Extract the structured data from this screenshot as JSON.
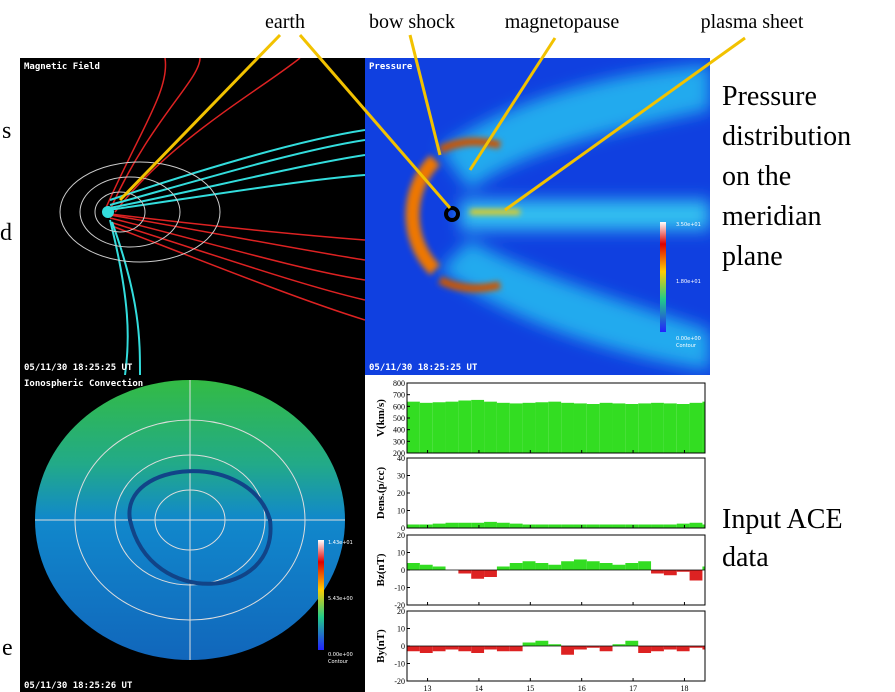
{
  "annotations": {
    "earth": "earth",
    "bow_shock": "bow shock",
    "magnetopause": "magnetopause",
    "plasma_sheet": "plasma sheet"
  },
  "left_fragments": [
    "s",
    "d",
    "e"
  ],
  "panels": {
    "magnetic": {
      "title": "Magnetic Field",
      "time": "05/11/30 18:25:25 UT"
    },
    "pressure": {
      "title": "Pressure",
      "time": "05/11/30 18:25:25 UT",
      "colorbar": [
        "3.50e+01",
        "1.80e+01",
        "0.00e+00"
      ],
      "contour": "Contour"
    },
    "ionosphere": {
      "title": "Ionospheric Convection",
      "time": "05/11/30 18:25:26 UT",
      "colorbar": [
        "1.43e+01",
        "5.43e+00",
        "0.00e+00"
      ],
      "contour": "Contour"
    }
  },
  "side_text": {
    "pressure": [
      "Pressure",
      "distribution",
      "on the",
      "meridian",
      "plane"
    ],
    "ace": [
      "Input ACE",
      "data"
    ]
  },
  "ace": {
    "x": [
      12.6,
      12.85,
      13.1,
      13.35,
      13.6,
      13.85,
      14.1,
      14.35,
      14.6,
      14.85,
      15.1,
      15.35,
      15.6,
      15.85,
      16.1,
      16.35,
      16.6,
      16.85,
      17.1,
      17.35,
      17.6,
      17.85,
      18.1,
      18.35
    ],
    "xlim": [
      12.6,
      18.4
    ],
    "xticks": [
      13,
      14,
      15,
      16,
      17,
      18
    ],
    "pos_color": "#33dd22",
    "neg_color": "#dd2222",
    "plots": [
      {
        "label": "V(km/s)",
        "ylim": [
          200,
          800
        ],
        "yticks": [
          200,
          300,
          400,
          500,
          600,
          700,
          800
        ],
        "values": [
          640,
          630,
          635,
          640,
          650,
          655,
          640,
          630,
          625,
          630,
          635,
          640,
          630,
          625,
          620,
          630,
          625,
          620,
          625,
          630,
          625,
          620,
          630,
          640
        ]
      },
      {
        "label": "Dens.(p/cc)",
        "ylim": [
          0,
          40
        ],
        "yticks": [
          0,
          10,
          20,
          30,
          40
        ],
        "values": [
          2,
          2,
          2.5,
          3,
          3,
          3,
          3.5,
          3,
          2.5,
          2,
          2,
          2,
          2,
          2,
          2,
          2,
          2,
          2,
          2,
          2,
          2,
          2.5,
          3,
          2
        ]
      },
      {
        "label": "Bz(nT)",
        "ylim": [
          -20,
          20
        ],
        "yticks": [
          -20,
          -10,
          0,
          10,
          20
        ],
        "values": [
          4,
          3,
          2,
          0,
          -2,
          -5,
          -4,
          2,
          4,
          5,
          4,
          3,
          5,
          6,
          5,
          4,
          3,
          4,
          5,
          -2,
          -3,
          -1,
          -6,
          2
        ]
      },
      {
        "label": "By(nT)",
        "ylim": [
          -20,
          20
        ],
        "yticks": [
          -20,
          -10,
          0,
          10,
          20
        ],
        "values": [
          -3,
          -4,
          -3,
          -2,
          -3,
          -4,
          -2,
          -3,
          -3,
          2,
          3,
          1,
          -5,
          -2,
          -1,
          -3,
          1,
          3,
          -4,
          -3,
          -2,
          -3,
          -1,
          -2
        ]
      }
    ]
  }
}
